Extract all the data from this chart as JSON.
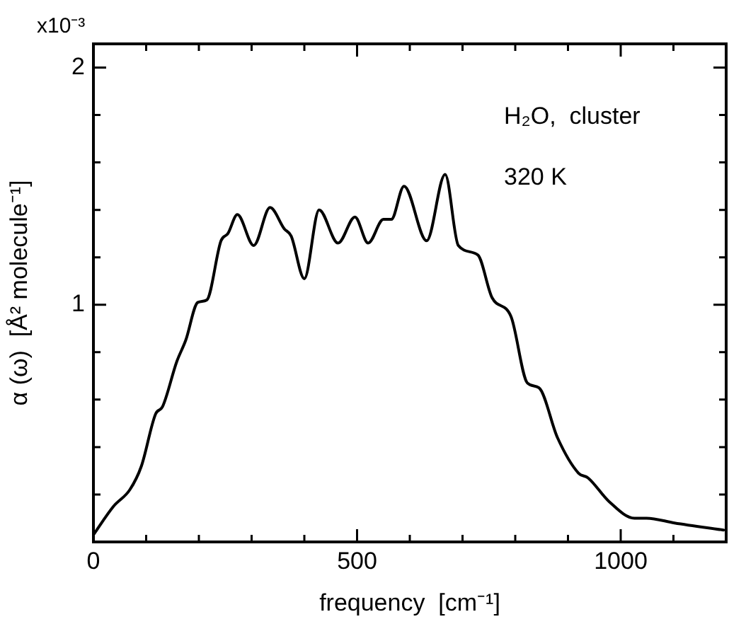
{
  "chart_data": {
    "type": "line",
    "xlabel": "frequency  [cm⁻¹]",
    "ylabel": "α (ω)  [Å² molecule⁻¹]",
    "annotations": [
      "x10⁻³",
      "H₂O,  cluster",
      "320 K"
    ],
    "xlim": [
      0,
      1200
    ],
    "ylim": [
      0,
      2.1
    ],
    "xticks": [
      0,
      {
        "value": 100,
        "label": null
      },
      {
        "value": 200,
        "label": null
      },
      {
        "value": 300,
        "label": null
      },
      {
        "value": 400,
        "label": null
      },
      500,
      {
        "value": 600,
        "label": null
      },
      {
        "value": 700,
        "label": null
      },
      {
        "value": 800,
        "label": null
      },
      {
        "value": 900,
        "label": null
      },
      1000,
      {
        "value": 1100,
        "label": null
      }
    ],
    "yticks": [
      {
        "value": 0,
        "label": null
      },
      {
        "value": 0.2,
        "label": null
      },
      {
        "value": 0.4,
        "label": null
      },
      {
        "value": 0.6,
        "label": null
      },
      {
        "value": 0.8,
        "label": null
      },
      1,
      {
        "value": 1.2,
        "label": null
      },
      {
        "value": 1.4,
        "label": null
      },
      {
        "value": 1.6,
        "label": null
      },
      {
        "value": 1.8,
        "label": null
      },
      2
    ],
    "grid": false,
    "legend": false,
    "marker": "none",
    "line_style": "solid",
    "series": [
      {
        "color": "#000000",
        "x": [
          0,
          38,
          69,
          91,
          118,
          131,
          158,
          175,
          198,
          215,
          242,
          255,
          273,
          304,
          335,
          362,
          375,
          400,
          428,
          464,
          496,
          521,
          550,
          565,
          589,
          632,
          667,
          692,
          729,
          756,
          792,
          823,
          845,
          880,
          920,
          938,
          978,
          1026,
          1049,
          1102,
          1195
        ],
        "values": [
          0.03,
          0.15,
          0.22,
          0.32,
          0.54,
          0.57,
          0.76,
          0.85,
          1.01,
          1.02,
          1.27,
          1.3,
          1.38,
          1.25,
          1.41,
          1.32,
          1.29,
          1.11,
          1.4,
          1.26,
          1.37,
          1.26,
          1.36,
          1.36,
          1.5,
          1.27,
          1.55,
          1.25,
          1.21,
          1.03,
          0.95,
          0.67,
          0.65,
          0.44,
          0.29,
          0.27,
          0.17,
          0.1,
          0.1,
          0.08,
          0.05
        ]
      }
    ]
  }
}
